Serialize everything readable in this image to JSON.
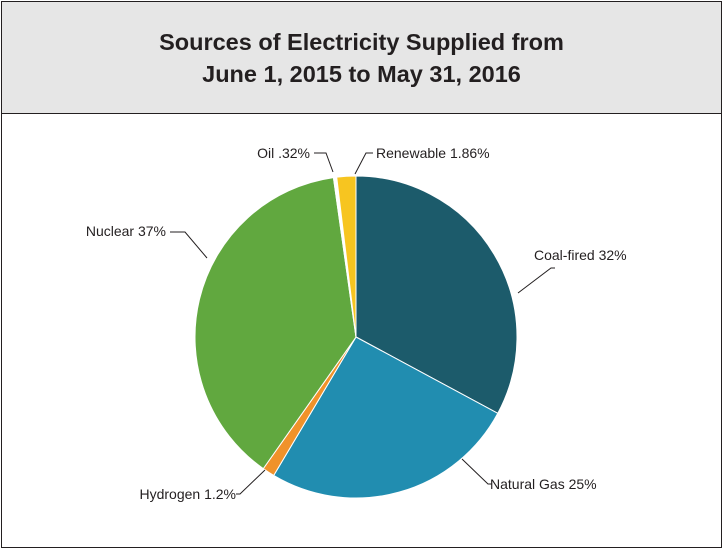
{
  "title_line1": "Sources of Electricity Supplied from",
  "title_line2": "June 1, 2015 to May 31, 2016",
  "chart_data": {
    "type": "pie",
    "title": "Sources of Electricity Supplied from June 1, 2015 to May 31, 2016",
    "slices": [
      {
        "key": "coal",
        "label": "Coal-fired 32%",
        "value": 32,
        "color": "#1c5b6b"
      },
      {
        "key": "gas",
        "label": "Natural Gas 25%",
        "value": 25,
        "color": "#218db0"
      },
      {
        "key": "hydrogen",
        "label": "Hydrogen 1.2%",
        "value": 1.2,
        "color": "#f0922a"
      },
      {
        "key": "nuclear",
        "label": "Nuclear 37%",
        "value": 37,
        "color": "#61a83f"
      },
      {
        "key": "oil",
        "label": "Oil .32%",
        "value": 0.32,
        "color": "#ffffff"
      },
      {
        "key": "renewable",
        "label": "Renewable 1.86%",
        "value": 1.86,
        "color": "#f7c520"
      }
    ]
  }
}
